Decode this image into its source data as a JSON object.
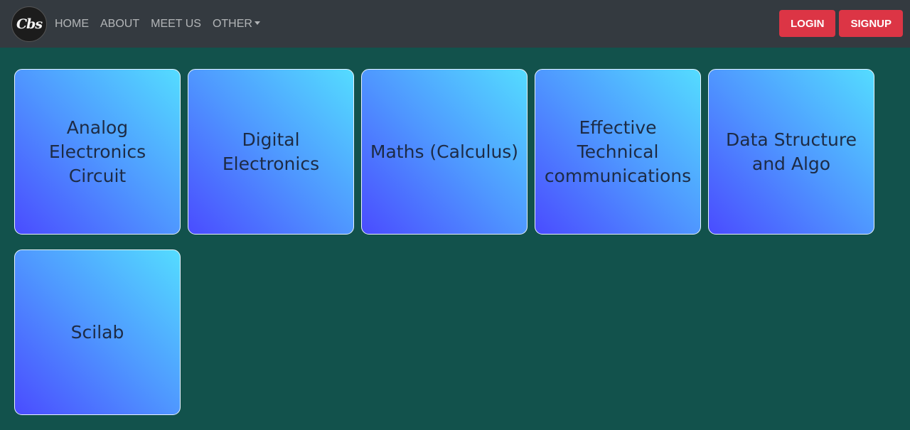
{
  "header": {
    "logo_text": "Cbs",
    "nav": [
      {
        "label": "HOME"
      },
      {
        "label": "ABOUT"
      },
      {
        "label": "MEET US"
      },
      {
        "label": "OTHER",
        "dropdown": true
      }
    ],
    "login_label": "LOGIN",
    "signup_label": "SIGNUP"
  },
  "subjects": [
    {
      "title": "Analog Electronics Circuit"
    },
    {
      "title": "Digital Electronics"
    },
    {
      "title": "Maths (Calculus)"
    },
    {
      "title": "Effective Technical communications"
    },
    {
      "title": "Data Structure and Algo"
    },
    {
      "title": "Scilab"
    }
  ],
  "colors": {
    "navbar": "#343a40",
    "background": "#12524c",
    "button": "#dc3545",
    "card_gradient_start": "#4a4cff",
    "card_gradient_end": "#54dcff"
  }
}
